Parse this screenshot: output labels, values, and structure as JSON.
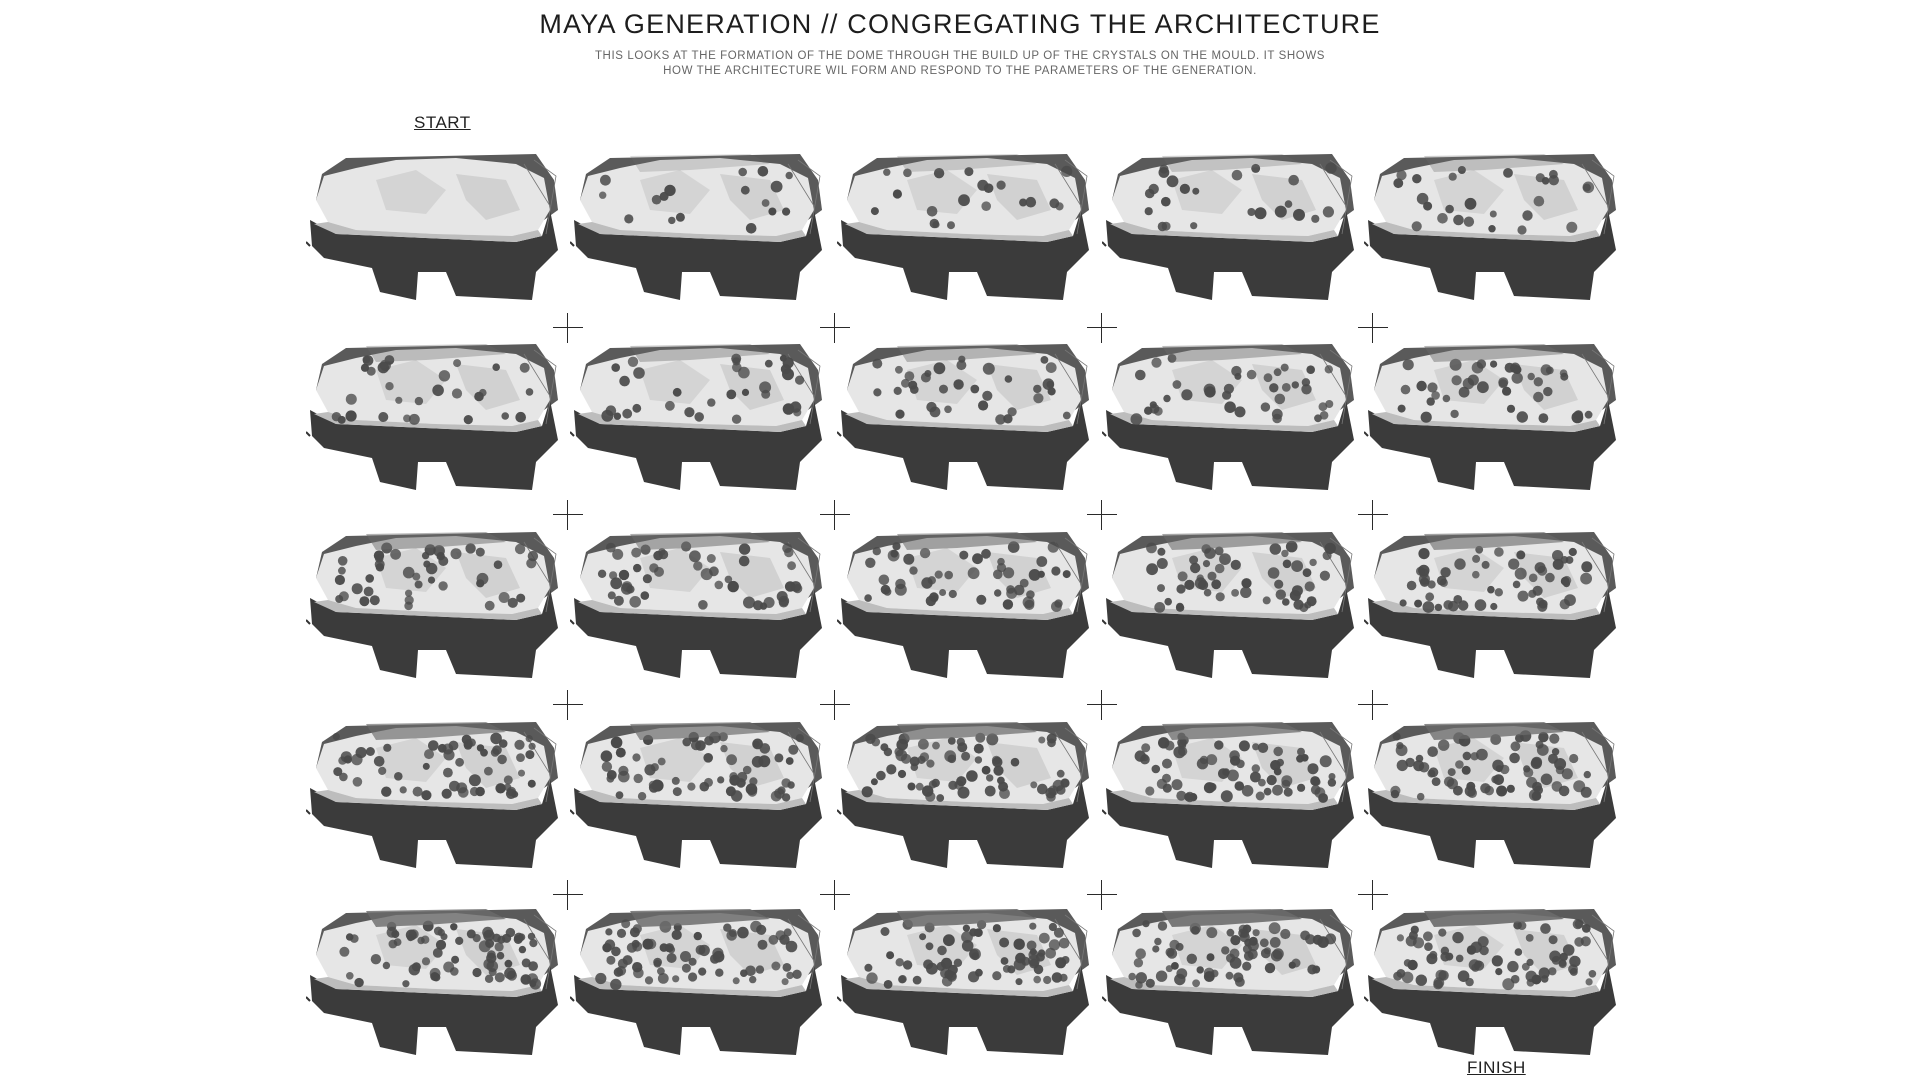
{
  "header": {
    "title": "MAYA GENERATION  //  CONGREGATING THE ARCHITECTURE",
    "subtitle_line1": "THIS LOOKS AT THE FORMATION OF THE DOME THROUGH THE BUILD UP OF THE CRYSTALS ON THE MOULD. IT SHOWS",
    "subtitle_line2": "HOW THE ARCHITECTURE WIL FORM AND RESPOND TO THE PARAMETERS OF THE GENERATION."
  },
  "sequence": {
    "start_label": "START",
    "finish_label": "FINISH",
    "rows": 5,
    "columns": 5,
    "frame_count": 25,
    "connector_icon": "plus-icon"
  },
  "colors": {
    "base_dark": "#3b3b3b",
    "mould_light": "#e6e6e6",
    "crystal": "#4a4a4a"
  }
}
